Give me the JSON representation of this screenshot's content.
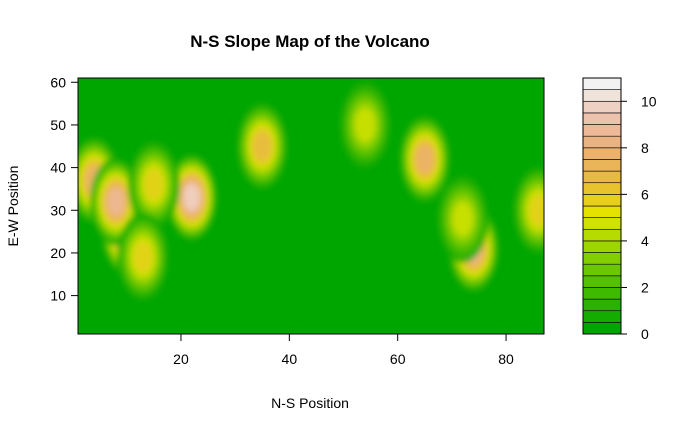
{
  "chart_data": {
    "type": "heatmap",
    "title": "N-S Slope Map of the Volcano",
    "xlabel": "N-S Position",
    "ylabel": "E-W Position",
    "xlim": [
      1,
      87
    ],
    "ylim": [
      1,
      61
    ],
    "x_ticks": [
      20,
      40,
      60,
      80
    ],
    "y_ticks": [
      10,
      20,
      30,
      40,
      50,
      60
    ],
    "colorbar": {
      "levels": [
        0,
        0.5,
        1,
        1.5,
        2,
        2.5,
        3,
        3.5,
        4,
        4.5,
        5,
        5.5,
        6,
        6.5,
        7,
        7.5,
        8,
        8.5,
        9,
        9.5,
        10,
        10.5,
        11
      ],
      "tick_values": [
        0,
        2,
        4,
        6,
        8,
        10
      ],
      "colors": [
        "#00A600",
        "#14AC00",
        "#29B300",
        "#3EBA00",
        "#54C100",
        "#6BC700",
        "#83CE00",
        "#9CD500",
        "#B6DB00",
        "#D0E200",
        "#E6E200",
        "#E6D01A",
        "#E8C32E",
        "#E9BA43",
        "#EAB458",
        "#EBB16D",
        "#ECB382",
        "#EDB998",
        "#EEC3AD",
        "#EFD1C3",
        "#F0E3D9",
        "#F2F2F2"
      ]
    },
    "hotspots": [
      {
        "x": 4,
        "y": 37,
        "value": 6.5
      },
      {
        "x": 10,
        "y": 25,
        "value": 9.0
      },
      {
        "x": 8,
        "y": 32,
        "value": 8.0
      },
      {
        "x": 22,
        "y": 33,
        "value": 9.0
      },
      {
        "x": 35,
        "y": 45,
        "value": 6.0
      },
      {
        "x": 15,
        "y": 36,
        "value": 4.5
      },
      {
        "x": 65,
        "y": 42,
        "value": 6.5
      },
      {
        "x": 74,
        "y": 21,
        "value": 7.5
      },
      {
        "x": 13,
        "y": 19,
        "value": 5.0
      },
      {
        "x": 72,
        "y": 28,
        "value": 4.0
      },
      {
        "x": 86,
        "y": 30,
        "value": 4.5
      },
      {
        "x": 54,
        "y": 50,
        "value": 4.0
      }
    ]
  }
}
